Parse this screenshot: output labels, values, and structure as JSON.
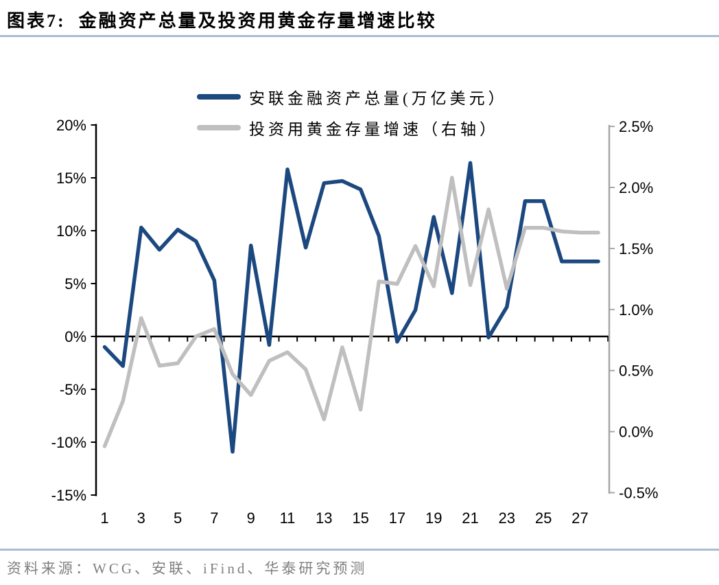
{
  "title": "图表7:  金融资产总量及投资用黄金存量增速比较",
  "source": "资料来源：WCG、安联、iFind、华泰研究预测",
  "colors": {
    "series_blue": "#1c4880",
    "series_gray": "#bfbfbf",
    "divider_rule": "#a8bcd4",
    "right_axis": "#a6a6a6",
    "left_axis": "#000000",
    "axis_text": "#000000",
    "source_text": "#7f7f7f"
  },
  "legend": {
    "items": [
      {
        "label": "安联金融资产总量(万亿美元）",
        "color": "#1c4880"
      },
      {
        "label": "投资用黄金存量增速（右轴）",
        "color": "#bfbfbf"
      }
    ]
  },
  "chart_data": {
    "type": "line",
    "x": [
      1,
      2,
      3,
      4,
      5,
      6,
      7,
      8,
      9,
      10,
      11,
      12,
      13,
      14,
      15,
      16,
      17,
      18,
      19,
      20,
      21,
      22,
      23,
      24,
      25,
      26,
      27,
      28
    ],
    "x_tick_positions": [
      1,
      3,
      5,
      7,
      9,
      11,
      13,
      15,
      17,
      19,
      21,
      23,
      25,
      27
    ],
    "x_tick_labels": [
      "1",
      "3",
      "5",
      "7",
      "9",
      "11",
      "13",
      "15",
      "17",
      "19",
      "21",
      "23",
      "25",
      "27"
    ],
    "series": [
      {
        "name": "安联金融资产总量(万亿美元）",
        "axis": "left",
        "color": "#1c4880",
        "values": [
          -1.0,
          -2.8,
          10.3,
          8.2,
          10.1,
          9.0,
          5.3,
          -10.9,
          8.6,
          -0.8,
          15.8,
          8.4,
          14.5,
          14.7,
          13.9,
          9.5,
          -0.5,
          2.5,
          11.3,
          4.1,
          16.4,
          -0.1,
          2.8,
          12.8,
          12.8,
          7.1,
          7.1,
          7.1
        ]
      },
      {
        "name": "投资用黄金存量增速（右轴）",
        "axis": "right",
        "color": "#bfbfbf",
        "values": [
          -0.12,
          0.25,
          0.93,
          0.54,
          0.56,
          0.78,
          0.84,
          0.47,
          0.3,
          0.58,
          0.65,
          0.51,
          0.1,
          0.69,
          0.18,
          1.23,
          1.21,
          1.52,
          1.19,
          2.08,
          1.2,
          1.82,
          1.17,
          1.67,
          1.67,
          1.64,
          1.63,
          1.63
        ]
      }
    ],
    "left_axis": {
      "tick_values": [
        20,
        15,
        10,
        5,
        0,
        -5,
        -10,
        -15
      ],
      "tick_labels": [
        "20%",
        "15%",
        "10%",
        "5%",
        "0%",
        "-5%",
        "-10%",
        "-15%"
      ],
      "range": [
        -15,
        20
      ]
    },
    "right_axis": {
      "tick_values": [
        2.5,
        2.0,
        1.5,
        1.0,
        0.5,
        0.0,
        -0.5
      ],
      "tick_labels": [
        "2.5%",
        "2.0%",
        "1.5%",
        "1.0%",
        "0.5%",
        "0.0%",
        "-0.5%"
      ],
      "range": [
        -0.5,
        2.5
      ]
    },
    "grid": false,
    "legend_position": "top-center"
  }
}
